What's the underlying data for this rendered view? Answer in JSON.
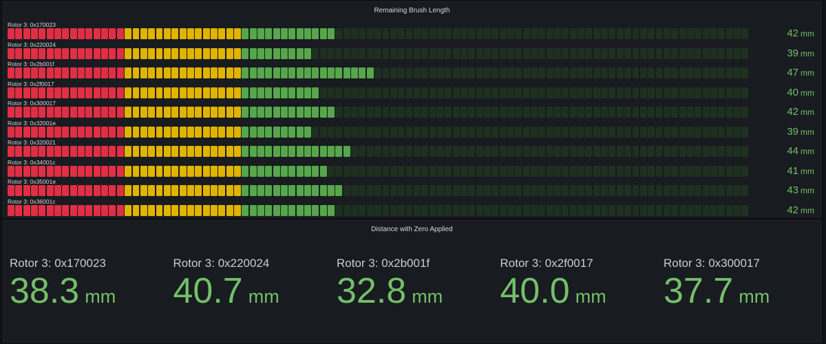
{
  "gauge_panel": {
    "title": "Remaining Brush Length",
    "unit": "mm",
    "max": 95,
    "thresholds": {
      "yellow_from": 15,
      "green_from": 30
    },
    "colors": {
      "red": "#e02f44",
      "yellow": "#e0b400",
      "green": "#56a64b",
      "unfilled": "#1e3020",
      "value_text": "#73bf69"
    },
    "rows": [
      {
        "label": "Rotor 3: 0x170023",
        "value": 42
      },
      {
        "label": "Rotor 3: 0x220024",
        "value": 39
      },
      {
        "label": "Rotor 3: 0x2b001f",
        "value": 47
      },
      {
        "label": "Rotor 3: 0x2f0017",
        "value": 40
      },
      {
        "label": "Rotor 3: 0x300017",
        "value": 42
      },
      {
        "label": "Rotor 3: 0x32001e",
        "value": 39
      },
      {
        "label": "Rotor 3: 0x320021",
        "value": 44
      },
      {
        "label": "Rotor 3: 0x34001c",
        "value": 41
      },
      {
        "label": "Rotor 3: 0x35001e",
        "value": 43
      },
      {
        "label": "Rotor 3: 0x36001c",
        "value": 42
      }
    ]
  },
  "stat_panel": {
    "title": "Distance with Zero Applied",
    "unit": "mm",
    "stats": [
      {
        "label": "Rotor 3: 0x170023",
        "value": "38.3"
      },
      {
        "label": "Rotor 3: 0x220024",
        "value": "40.7"
      },
      {
        "label": "Rotor 3: 0x2b001f",
        "value": "32.8"
      },
      {
        "label": "Rotor 3: 0x2f0017",
        "value": "40.0"
      },
      {
        "label": "Rotor 3: 0x300017",
        "value": "37.7"
      }
    ]
  }
}
